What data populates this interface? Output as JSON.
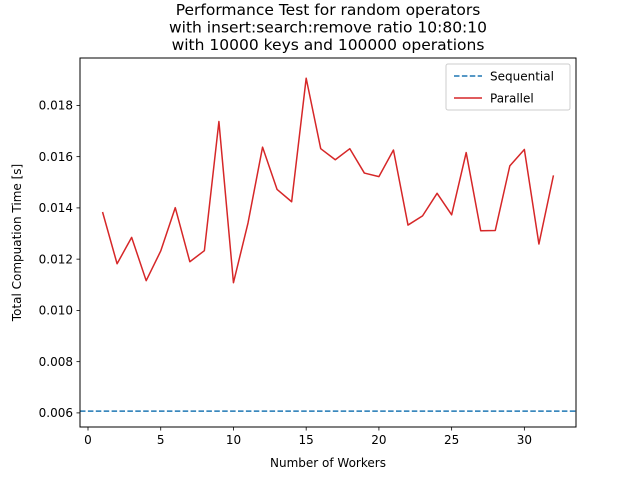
{
  "chart_data": {
    "type": "line",
    "title_lines": [
      "Performance Test for random operators",
      "with insert:search:remove ratio 10:80:10",
      "with 10000 keys and 100000 operations"
    ],
    "xlabel": "Number of Workers",
    "ylabel": "Total Compuation Time [s]",
    "xlim": [
      -0.55,
      33.55
    ],
    "ylim": [
      0.00545,
      0.01985
    ],
    "xticks": [
      0,
      5,
      10,
      15,
      20,
      25,
      30
    ],
    "yticks": [
      0.006,
      0.008,
      0.01,
      0.012,
      0.014,
      0.016,
      0.018
    ],
    "ytick_labels": [
      "0.006",
      "0.008",
      "0.010",
      "0.012",
      "0.014",
      "0.016",
      "0.018"
    ],
    "legend_position": "upper right",
    "grid": false,
    "series": [
      {
        "name": "Sequential",
        "style": "dashed-horizontal",
        "color": "#1f77b4",
        "value": 0.00607
      },
      {
        "name": "Parallel",
        "style": "solid",
        "color": "#d62728",
        "x": [
          1,
          2,
          3,
          4,
          5,
          6,
          7,
          8,
          9,
          10,
          11,
          12,
          13,
          14,
          15,
          16,
          17,
          18,
          19,
          20,
          21,
          22,
          23,
          24,
          25,
          26,
          27,
          28,
          29,
          30,
          31,
          32
        ],
        "values": [
          0.01384,
          0.01182,
          0.01285,
          0.01116,
          0.01232,
          0.01401,
          0.0119,
          0.01233,
          0.01737,
          0.01108,
          0.01341,
          0.01637,
          0.01472,
          0.01424,
          0.01906,
          0.01631,
          0.01588,
          0.01631,
          0.01536,
          0.01522,
          0.01626,
          0.01333,
          0.01369,
          0.01457,
          0.01373,
          0.01616,
          0.01311,
          0.01312,
          0.01564,
          0.01628,
          0.01259,
          0.01527
        ]
      }
    ]
  }
}
